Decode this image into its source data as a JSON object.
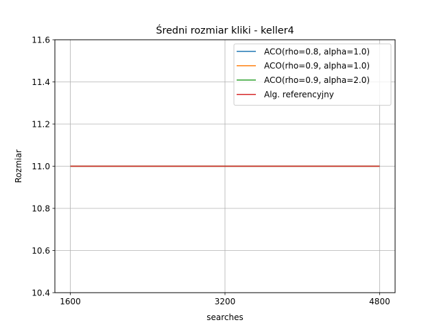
{
  "chart_data": {
    "type": "line",
    "title": "Średni rozmiar kliki - keller4",
    "xlabel": "searches",
    "ylabel": "Rozmiar",
    "x": [
      1600,
      3200,
      4800
    ],
    "xlim": [
      1440,
      4960
    ],
    "ylim": [
      10.4,
      11.6
    ],
    "xticks": [
      1600,
      3200,
      4800
    ],
    "xtick_labels": [
      "1600",
      "3200",
      "4800"
    ],
    "yticks": [
      10.4,
      10.6,
      10.8,
      11.0,
      11.2,
      11.4,
      11.6
    ],
    "ytick_labels": [
      "10.4",
      "10.6",
      "10.8",
      "11.0",
      "11.2",
      "11.4",
      "11.6"
    ],
    "grid": true,
    "legend_position": "top-right",
    "series": [
      {
        "name": "ACO(rho=0.8, alpha=1.0)",
        "color": "#1f77b4",
        "values": [
          11.0,
          11.0,
          11.0
        ]
      },
      {
        "name": "ACO(rho=0.9, alpha=1.0)",
        "color": "#ff7f0e",
        "values": [
          11.0,
          11.0,
          11.0
        ]
      },
      {
        "name": "ACO(rho=0.9, alpha=2.0)",
        "color": "#2ca02c",
        "values": [
          11.0,
          11.0,
          11.0
        ]
      },
      {
        "name": "Alg. referencyjny",
        "color": "#d62728",
        "values": [
          11.0,
          11.0,
          11.0
        ]
      }
    ]
  }
}
